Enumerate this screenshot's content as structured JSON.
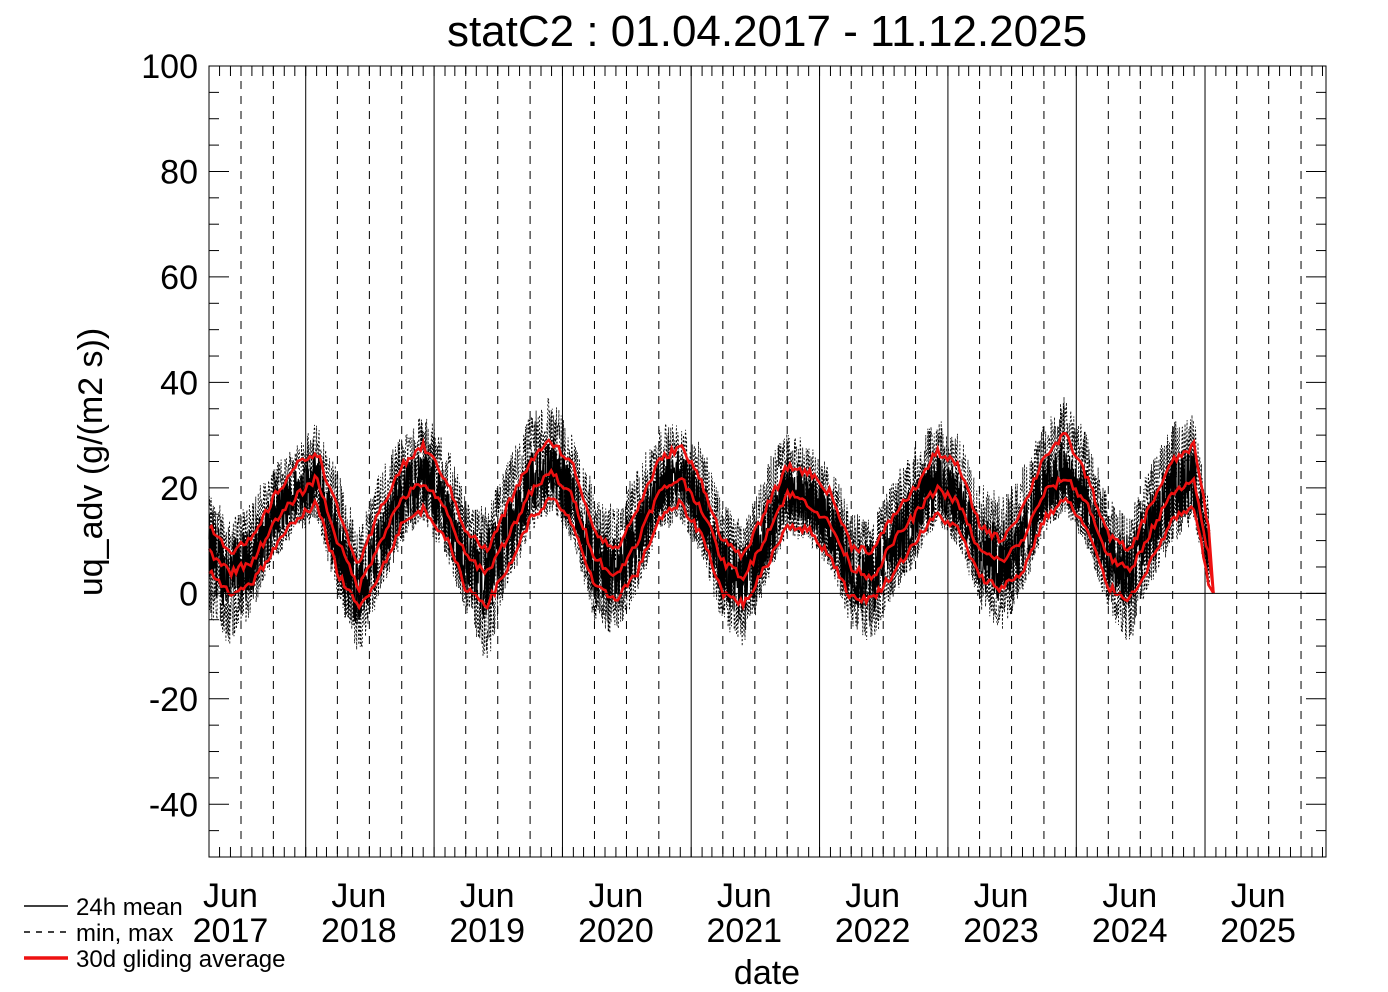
{
  "chart_data": {
    "type": "line",
    "title": "statC2 : 01.04.2017 - 11.12.2025",
    "xlabel": "date",
    "ylabel": "uq_adv (g/(m2 s))",
    "ylim": [
      -50,
      100
    ],
    "yticks": [
      -40,
      -20,
      0,
      20,
      40,
      60,
      80,
      100
    ],
    "ytick_labels": [
      "-40",
      "-20",
      "0",
      "20",
      "40",
      "60",
      "80",
      "100"
    ],
    "xlim": [
      "2017-04-01",
      "2025-12-11"
    ],
    "xtick_labels": [
      {
        "month": "Jun",
        "year": "2017",
        "date": "2017-06-01"
      },
      {
        "month": "Jun",
        "year": "2018",
        "date": "2018-06-01"
      },
      {
        "month": "Jun",
        "year": "2019",
        "date": "2019-06-01"
      },
      {
        "month": "Jun",
        "year": "2020",
        "date": "2020-06-01"
      },
      {
        "month": "Jun",
        "year": "2021",
        "date": "2021-06-01"
      },
      {
        "month": "Jun",
        "year": "2022",
        "date": "2022-06-01"
      },
      {
        "month": "Jun",
        "year": "2023",
        "date": "2023-06-01"
      },
      {
        "month": "Jun",
        "year": "2024",
        "date": "2024-06-01"
      },
      {
        "month": "Jun",
        "year": "2025",
        "date": "2025-06-01"
      }
    ],
    "year_boundaries": [
      "2018-01-01",
      "2019-01-01",
      "2020-01-01",
      "2021-01-01",
      "2022-01-01",
      "2023-01-01",
      "2024-01-01",
      "2025-01-01"
    ],
    "quarter_lines": [
      "2017-07-01",
      "2017-10-01",
      "2018-04-01",
      "2018-07-01",
      "2018-10-01",
      "2019-04-01",
      "2019-07-01",
      "2019-10-01",
      "2020-04-01",
      "2020-07-01",
      "2020-10-01",
      "2021-04-01",
      "2021-07-01",
      "2021-10-01",
      "2022-04-01",
      "2022-07-01",
      "2022-10-01",
      "2023-04-01",
      "2023-07-01",
      "2023-10-01",
      "2024-04-01",
      "2024-07-01",
      "2024-10-01",
      "2025-04-01",
      "2025-07-01",
      "2025-10-01"
    ],
    "zero_line": 0,
    "grid": false,
    "data_end": "2025-01-15",
    "series": [
      {
        "name": "24h mean",
        "style": "solid",
        "color": "#000000",
        "x": [
          "2017-04-01",
          "2017-06-01",
          "2017-08-01",
          "2017-10-01",
          "2017-12-01",
          "2018-02-01",
          "2018-04-01",
          "2018-06-01",
          "2018-08-01",
          "2018-10-01",
          "2018-12-01",
          "2019-02-01",
          "2019-04-01",
          "2019-06-01",
          "2019-08-01",
          "2019-10-01",
          "2019-12-01",
          "2020-02-01",
          "2020-04-01",
          "2020-06-01",
          "2020-08-01",
          "2020-10-01",
          "2020-12-01",
          "2021-02-01",
          "2021-04-01",
          "2021-06-01",
          "2021-08-01",
          "2021-10-01",
          "2021-12-01",
          "2022-02-01",
          "2022-04-01",
          "2022-06-01",
          "2022-08-01",
          "2022-10-01",
          "2022-12-01",
          "2023-02-01",
          "2023-04-01",
          "2023-06-01",
          "2023-08-01",
          "2023-10-01",
          "2023-12-01",
          "2024-02-01",
          "2024-04-01",
          "2024-06-01",
          "2024-08-01",
          "2024-10-01",
          "2024-12-01",
          "2025-01-15"
        ],
        "values": [
          8,
          3,
          6,
          14,
          19,
          22,
          9,
          0,
          10,
          18,
          22,
          16,
          6,
          3,
          11,
          20,
          24,
          18,
          6,
          3,
          10,
          20,
          22,
          16,
          5,
          2,
          11,
          20,
          18,
          13,
          4,
          3,
          10,
          15,
          21,
          17,
          8,
          6,
          10,
          20,
          23,
          17,
          6,
          4,
          12,
          20,
          22,
          5
        ]
      },
      {
        "name": "min, max",
        "style": "dashed",
        "color": "#000000",
        "lower": [
          -5,
          -10,
          -3,
          6,
          12,
          14,
          0,
          -12,
          0,
          10,
          14,
          8,
          -3,
          -14,
          2,
          12,
          16,
          10,
          -5,
          -8,
          0,
          12,
          14,
          7,
          -6,
          -10,
          2,
          12,
          10,
          5,
          -6,
          -10,
          0,
          6,
          14,
          9,
          -2,
          -8,
          0,
          12,
          16,
          9,
          -3,
          -10,
          2,
          10,
          14,
          0
        ],
        "upper": [
          19,
          14,
          18,
          24,
          28,
          32,
          24,
          12,
          24,
          30,
          34,
          30,
          18,
          16,
          26,
          34,
          38,
          30,
          20,
          16,
          24,
          32,
          32,
          28,
          18,
          14,
          24,
          32,
          28,
          24,
          16,
          14,
          22,
          28,
          34,
          30,
          22,
          18,
          24,
          32,
          38,
          30,
          18,
          14,
          26,
          32,
          34,
          16
        ]
      },
      {
        "name": "30d gliding average",
        "style": "solid",
        "color": "#ee1111",
        "x": [
          "2017-04-01",
          "2017-06-01",
          "2017-08-01",
          "2017-10-01",
          "2017-12-01",
          "2018-02-01",
          "2018-04-01",
          "2018-06-01",
          "2018-08-01",
          "2018-10-01",
          "2018-12-01",
          "2019-02-01",
          "2019-04-01",
          "2019-06-01",
          "2019-08-01",
          "2019-10-01",
          "2019-12-01",
          "2020-02-01",
          "2020-04-01",
          "2020-06-01",
          "2020-08-01",
          "2020-10-01",
          "2020-12-01",
          "2021-02-01",
          "2021-04-01",
          "2021-06-01",
          "2021-08-01",
          "2021-10-01",
          "2021-12-01",
          "2022-02-01",
          "2022-04-01",
          "2022-06-01",
          "2022-08-01",
          "2022-10-01",
          "2022-12-01",
          "2023-02-01",
          "2023-04-01",
          "2023-06-01",
          "2023-08-01",
          "2023-10-01",
          "2023-12-01",
          "2024-02-01",
          "2024-04-01",
          "2024-06-01",
          "2024-08-01",
          "2024-10-01",
          "2024-12-01",
          "2025-01-15"
        ],
        "mean": [
          8,
          4,
          6,
          13,
          18,
          22,
          10,
          1,
          10,
          18,
          21,
          16,
          7,
          4,
          11,
          19,
          23,
          18,
          7,
          3,
          10,
          19,
          22,
          16,
          6,
          3,
          11,
          19,
          17,
          13,
          5,
          3,
          10,
          15,
          20,
          17,
          8,
          6,
          10,
          19,
          22,
          17,
          7,
          4,
          12,
          19,
          21,
          6
        ],
        "lower": [
          4,
          0,
          2,
          8,
          14,
          17,
          4,
          -3,
          4,
          13,
          16,
          11,
          1,
          -2,
          5,
          14,
          18,
          13,
          1,
          -1,
          4,
          14,
          17,
          11,
          0,
          -2,
          5,
          13,
          12,
          7,
          -1,
          -1,
          4,
          10,
          15,
          12,
          3,
          1,
          4,
          14,
          18,
          12,
          1,
          -1,
          6,
          14,
          16,
          1
        ],
        "upper": [
          13,
          8,
          10,
          18,
          24,
          27,
          16,
          5,
          16,
          24,
          28,
          22,
          12,
          8,
          17,
          25,
          29,
          24,
          12,
          8,
          16,
          25,
          28,
          21,
          10,
          7,
          16,
          24,
          23,
          19,
          9,
          8,
          15,
          20,
          27,
          24,
          13,
          10,
          16,
          26,
          30,
          22,
          11,
          8,
          17,
          25,
          28,
          11
        ]
      }
    ],
    "legend": [
      {
        "label": "24h mean",
        "style": "solid-thin"
      },
      {
        "label": "min, max",
        "style": "dashed"
      },
      {
        "label": "30d gliding average",
        "style": "solid-red"
      }
    ],
    "legend_position": "bottom-left"
  }
}
